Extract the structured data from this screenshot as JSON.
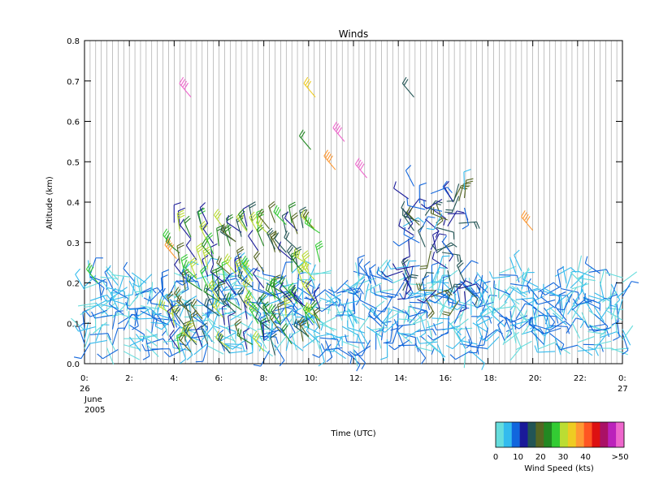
{
  "chart_data": {
    "type": "scatter",
    "title": "Winds",
    "xlabel": "Time (UTC)",
    "ylabel": "Altitude (km)",
    "xlim": [
      0,
      24
    ],
    "ylim": [
      0.0,
      0.8
    ],
    "x_ticks": [
      "0:",
      "2:",
      "4:",
      "6:",
      "8:",
      "10:",
      "12:",
      "14:",
      "16:",
      "18:",
      "20:",
      "22:",
      "0:"
    ],
    "x_tick_values": [
      0,
      2,
      4,
      6,
      8,
      10,
      12,
      14,
      16,
      18,
      20,
      22,
      24
    ],
    "y_ticks": [
      "0.0",
      "0.1",
      "0.2",
      "0.3",
      "0.4",
      "0.5",
      "0.6",
      "0.7",
      "0.8"
    ],
    "y_tick_values": [
      0.0,
      0.1,
      0.2,
      0.3,
      0.4,
      0.5,
      0.6,
      0.7,
      0.8
    ],
    "date_start": [
      "26",
      "June",
      "2005"
    ],
    "date_end": [
      "27"
    ],
    "grid": "vertical lines at each profile time",
    "colorbar": {
      "label": "Wind Speed (kts)",
      "ticks": [
        "0",
        "10",
        "20",
        "30",
        "40",
        ">50"
      ],
      "colors": [
        "#66dddd",
        "#33bbee",
        "#1166dd",
        "#1a1a99",
        "#225555",
        "#556622",
        "#228822",
        "#33cc33",
        "#bbdd33",
        "#eecc22",
        "#ff9933",
        "#ff5522",
        "#dd1111",
        "#aa1166",
        "#bb22bb",
        "#ee66cc"
      ]
    },
    "series": [
      {
        "low_winds_altitude_range_km": [
          0.03,
          0.23
        ],
        "low_winds_speed_kts": [
          0,
          10
        ],
        "low_winds_hours": [
          0.0,
          24.0
        ]
      },
      {
        "moderate_winds_altitude_range_km": [
          0.02,
          0.35
        ],
        "moderate_winds_speed_kts": [
          10,
          30
        ],
        "moderate_winds_hours": [
          4.0,
          10.5
        ]
      },
      {
        "upper_winds_altitude_range_km": [
          0.15,
          0.45
        ],
        "upper_winds_speed_kts": [
          5,
          20
        ],
        "upper_winds_hours": [
          14.2,
          17.0
        ]
      }
    ],
    "isolated_barbs": [
      {
        "t": 4.75,
        "alt": 0.66,
        "speed_kts": 50
      },
      {
        "t": 10.3,
        "alt": 0.66,
        "speed_kts": 30
      },
      {
        "t": 10.1,
        "alt": 0.53,
        "speed_kts": 20
      },
      {
        "t": 11.6,
        "alt": 0.55,
        "speed_kts": 50
      },
      {
        "t": 11.2,
        "alt": 0.48,
        "speed_kts": 35
      },
      {
        "t": 12.6,
        "alt": 0.46,
        "speed_kts": 50
      },
      {
        "t": 14.7,
        "alt": 0.66,
        "speed_kts": 15
      },
      {
        "t": 20.0,
        "alt": 0.33,
        "speed_kts": 35
      },
      {
        "t": 0.6,
        "alt": 0.2,
        "speed_kts": 25
      },
      {
        "t": 4.1,
        "alt": 0.26,
        "speed_kts": 35
      }
    ]
  }
}
